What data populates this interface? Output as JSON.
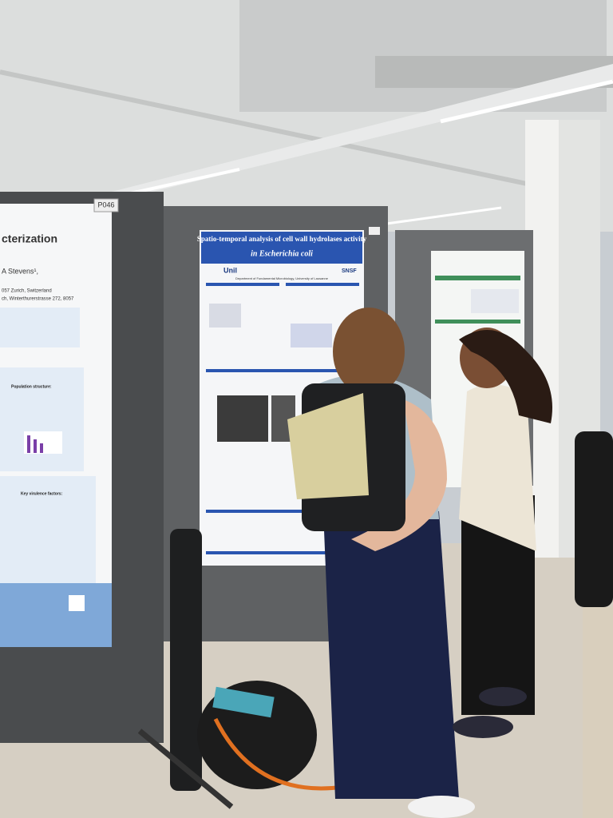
{
  "board_label": "P046",
  "left_poster": {
    "title": "cterization",
    "authors": "A Stevens¹,",
    "affiliations": [
      "057 Zurich, Switzerland",
      "ch, Winterthurerstrasse 272, 8057"
    ],
    "sections": [
      "Population structure:",
      "Key virulence factors:"
    ]
  },
  "center_poster": {
    "title": "Spatio-temporal analysis of cell wall hydrolases activity",
    "title_species": "in Escherichia coli",
    "logos": [
      "Unil",
      "SNSF"
    ],
    "affiliation": "Department of Fundamental Microbiology, University of Lausanne"
  }
}
